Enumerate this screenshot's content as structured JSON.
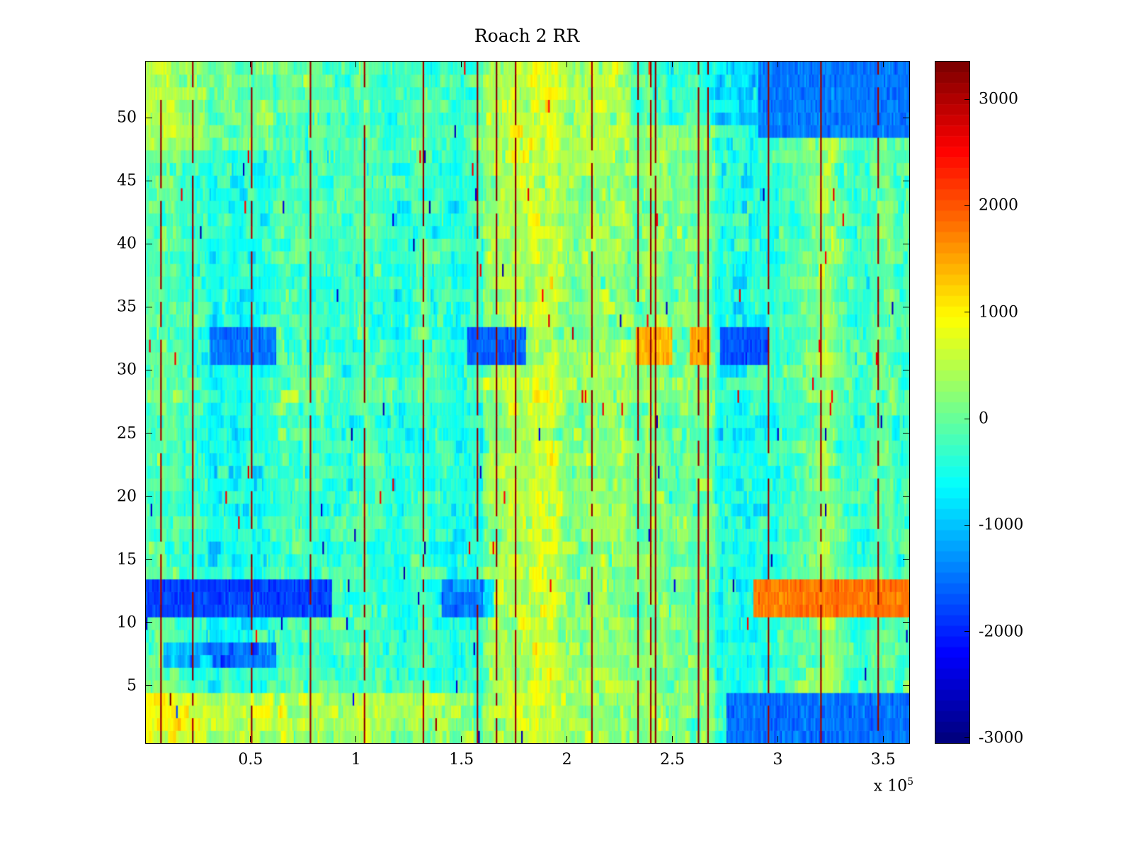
{
  "title": "Roach 2 RR",
  "x_exponent": {
    "base": "x 10",
    "sup": "5"
  },
  "chart_data": {
    "type": "heatmap",
    "title": "Roach 2 RR",
    "xlabel": "",
    "ylabel": "",
    "x_range": [
      0,
      362000
    ],
    "y_range": [
      0.5,
      54.5
    ],
    "x_ticks": [
      50000,
      100000,
      150000,
      200000,
      250000,
      300000,
      350000
    ],
    "x_tick_labels": [
      "0.5",
      "1",
      "1.5",
      "2",
      "2.5",
      "3",
      "3.5"
    ],
    "x_exponent_label": "x 10^5",
    "y_ticks": [
      5,
      10,
      15,
      20,
      25,
      30,
      35,
      40,
      45,
      50
    ],
    "y_tick_labels": [
      "5",
      "10",
      "15",
      "20",
      "25",
      "30",
      "35",
      "40",
      "45",
      "50"
    ],
    "colorbar": {
      "range": [
        -3040,
        3360
      ],
      "ticks": [
        -3000,
        -2000,
        -1000,
        0,
        1000,
        2000,
        3000
      ],
      "tick_labels": [
        "-3000",
        "-2000",
        "-1000",
        "0",
        "1000",
        "2000",
        "3000"
      ],
      "colormap": "jet",
      "levels": 64
    },
    "grid": {
      "rows": 54,
      "cols": 480
    },
    "noise": {
      "seed": 1337,
      "amplitude": 650,
      "col_bias": 550,
      "row_bias": 200,
      "run_prob": 0.35,
      "spike_prob": 0.004,
      "spike_value": 2600
    },
    "features": {
      "vertical_lines": {
        "value": 3300,
        "x_positions": [
          7000,
          22000,
          50000,
          78000,
          103000,
          131000,
          157000,
          166000,
          175000,
          211000,
          233000,
          239000,
          241000,
          262000,
          266000,
          295000,
          320000,
          347000
        ]
      },
      "warm_region": {
        "x": [
          160000,
          270000
        ],
        "delta": 320
      },
      "bands": [
        {
          "rows": [
            11,
            13
          ],
          "x": [
            0,
            88000
          ],
          "delta": -1800
        },
        {
          "rows": [
            11,
            13
          ],
          "x": [
            140000,
            165000
          ],
          "delta": -900
        },
        {
          "rows": [
            11,
            13
          ],
          "x": [
            288000,
            362000
          ],
          "delta": 1800
        },
        {
          "rows": [
            31,
            33
          ],
          "x": [
            30000,
            62000
          ],
          "delta": -1500
        },
        {
          "rows": [
            31,
            33
          ],
          "x": [
            152000,
            180000
          ],
          "delta": -1600
        },
        {
          "rows": [
            31,
            33
          ],
          "x": [
            272000,
            296000
          ],
          "delta": -1700
        },
        {
          "rows": [
            31,
            33
          ],
          "x": [
            232000,
            250000
          ],
          "delta": 1400
        },
        {
          "rows": [
            31,
            33
          ],
          "x": [
            258000,
            268000
          ],
          "delta": 1500
        },
        {
          "rows": [
            1,
            4
          ],
          "x": [
            0,
            60000
          ],
          "delta": 900
        },
        {
          "rows": [
            1,
            4
          ],
          "x": [
            60000,
            155000
          ],
          "delta": 550
        },
        {
          "rows": [
            1,
            4
          ],
          "x": [
            275000,
            362000
          ],
          "delta": -1500
        },
        {
          "rows": [
            7,
            8
          ],
          "x": [
            8000,
            62000
          ],
          "delta": -1000
        },
        {
          "rows": [
            48,
            54
          ],
          "x": [
            0,
            60000
          ],
          "delta": 450
        },
        {
          "rows": [
            49,
            54
          ],
          "x": [
            290000,
            362000
          ],
          "delta": -1450
        },
        {
          "rows": [
            50,
            54
          ],
          "x": [
            230000,
            290000
          ],
          "delta": -500
        }
      ]
    }
  }
}
